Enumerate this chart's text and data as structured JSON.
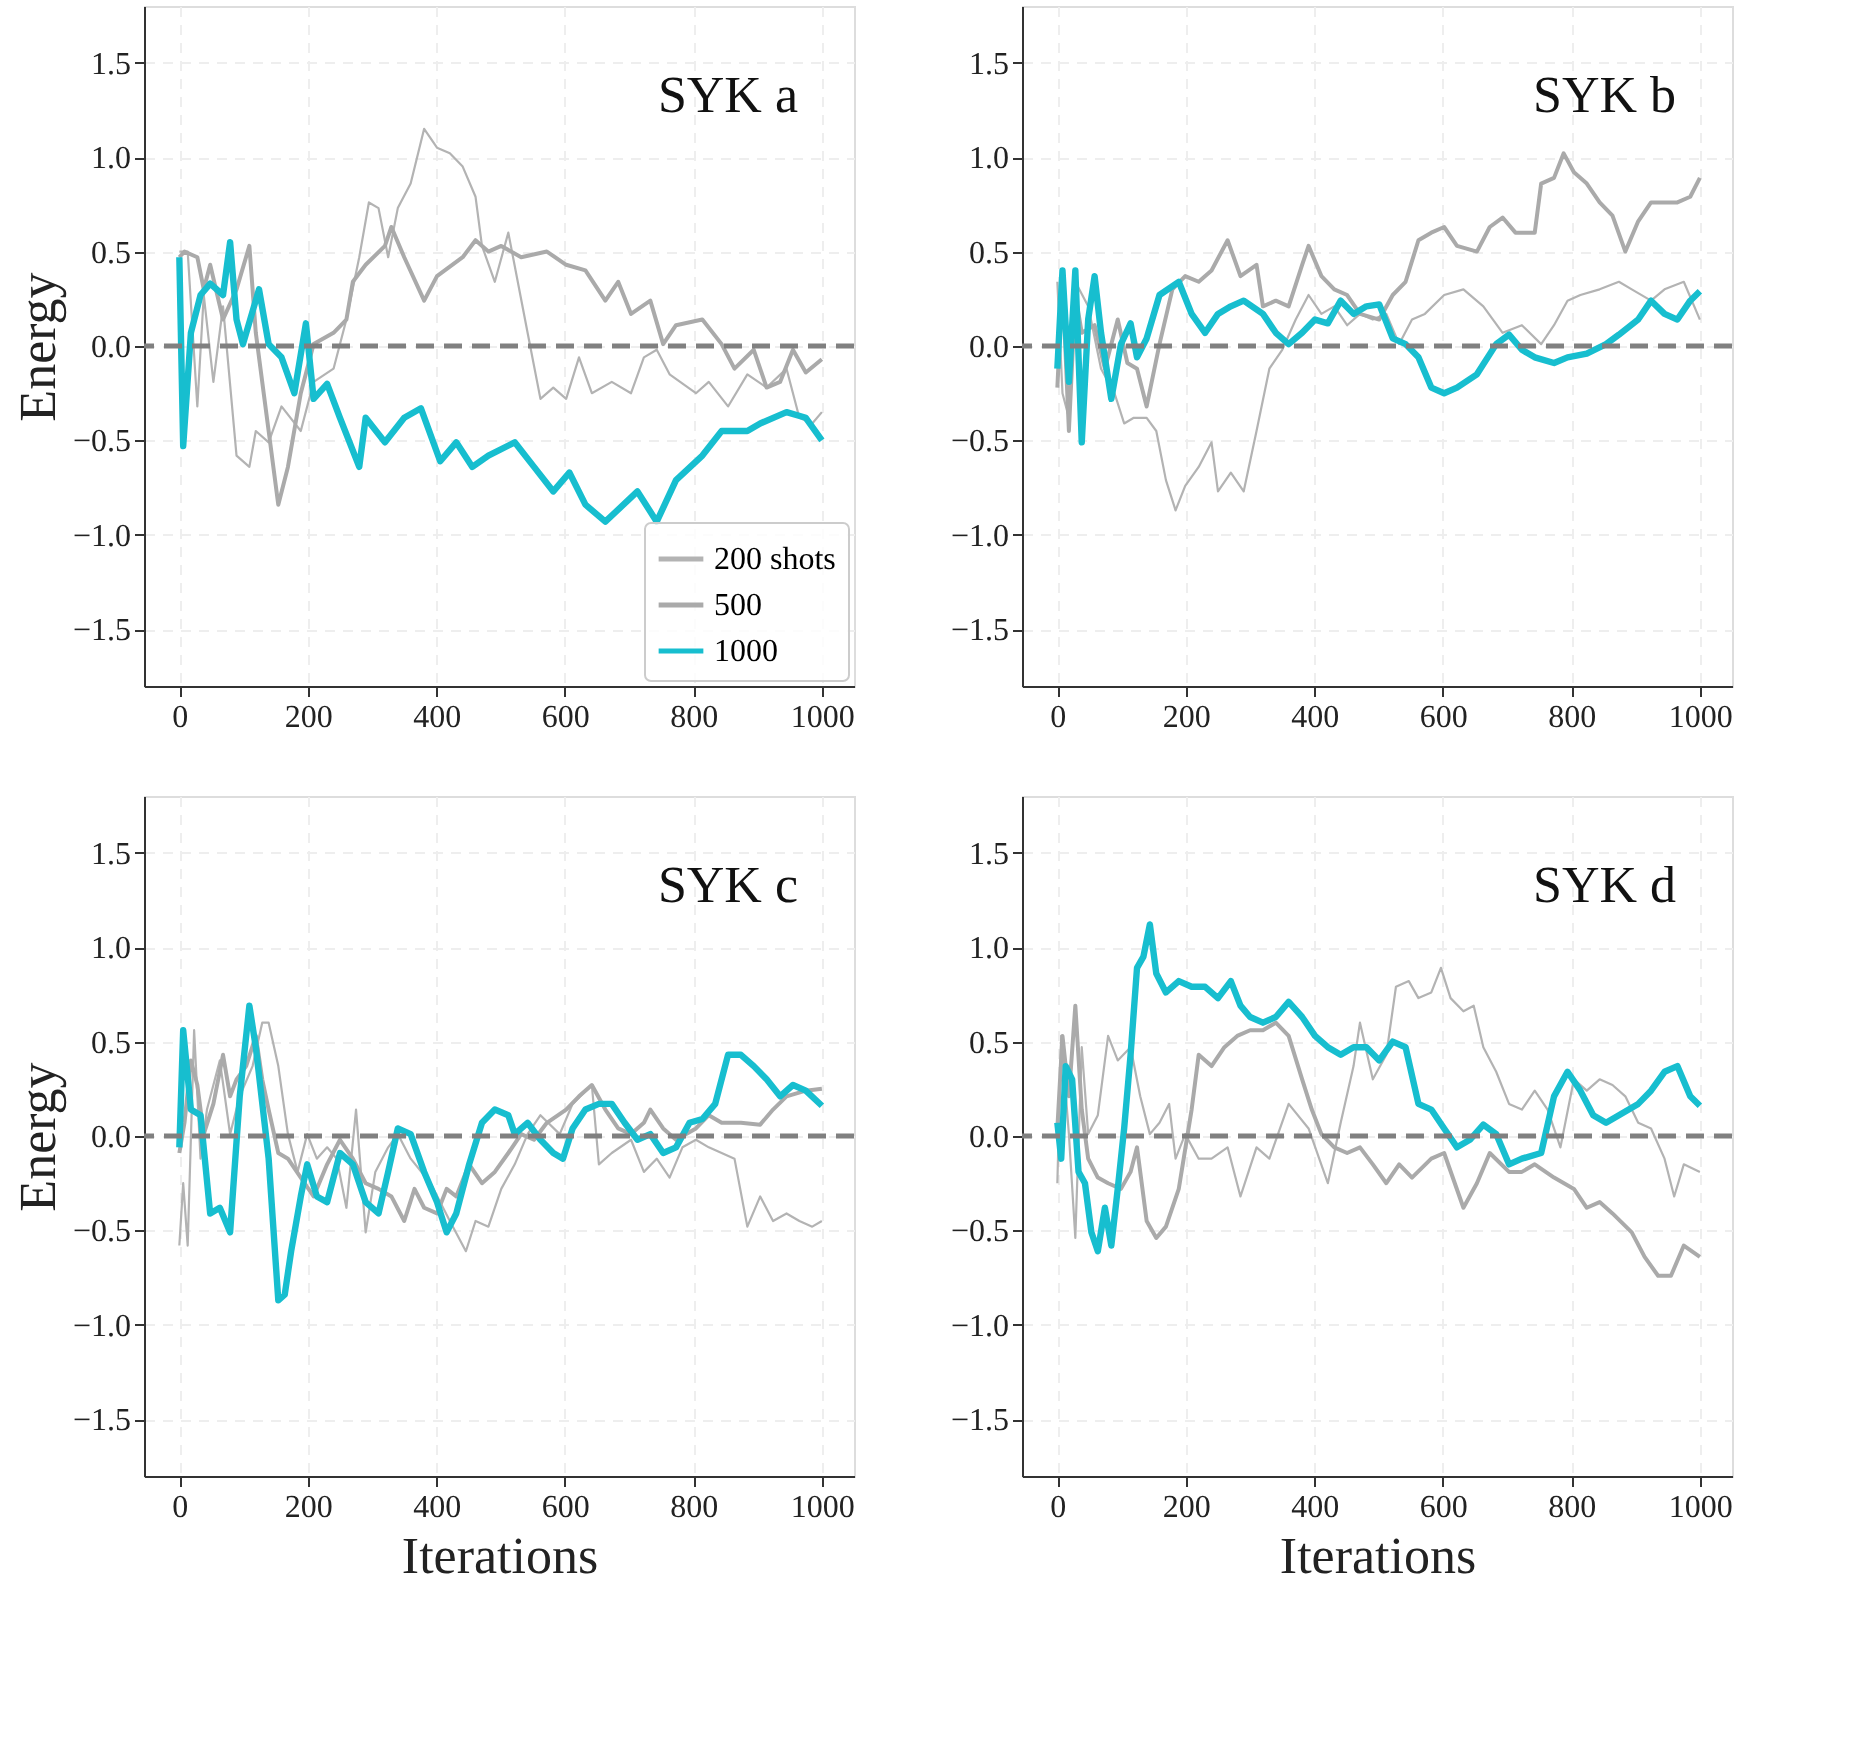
{
  "chart_data": [
    {
      "type": "line",
      "title": "SYK a",
      "ylabel": "Energy",
      "xlim": [
        -55,
        1050
      ],
      "ylim": [
        -1.8,
        1.8
      ],
      "xticks": [
        0,
        200,
        400,
        600,
        800,
        1000
      ],
      "yticks": [
        {
          "value": -1.5,
          "label": "−1.5"
        },
        {
          "value": -1,
          "label": "−1.0"
        },
        {
          "value": -0.5,
          "label": "−0.5"
        },
        {
          "value": 0,
          "label": "0.0"
        },
        {
          "value": 0.5,
          "label": "0.5"
        },
        {
          "value": 1,
          "label": "1.0"
        },
        {
          "value": 1.5,
          "label": "1.5"
        }
      ],
      "grid": true,
      "legend": "bottom right",
      "ref_lines": [
        {
          "axis": "y",
          "value": 0,
          "color": "#808080",
          "line_style": "dashed"
        }
      ],
      "series": [
        {
          "name": "200 shots",
          "color": "#b3b3b3",
          "x": [
            0,
            13,
            28,
            38,
            53,
            68,
            89,
            109,
            119,
            139,
            159,
            189,
            209,
            240,
            260,
            280,
            295,
            310,
            325,
            340,
            360,
            381,
            401,
            421,
            441,
            461,
            471,
            491,
            512,
            542,
            562,
            582,
            602,
            622,
            642,
            673,
            703,
            723,
            743,
            763,
            804,
            824,
            854,
            884,
            914,
            945,
            965,
            985,
            1000
          ],
          "values": [
            0.5,
            0.5,
            -0.32,
            0.27,
            -0.19,
            0.21,
            -0.58,
            -0.64,
            -0.45,
            -0.51,
            -0.32,
            -0.45,
            -0.19,
            -0.12,
            0.14,
            0.47,
            0.76,
            0.73,
            0.47,
            0.73,
            0.86,
            1.15,
            1.05,
            1.02,
            0.95,
            0.79,
            0.53,
            0.34,
            0.6,
            0.07,
            -0.28,
            -0.22,
            -0.28,
            -0.06,
            -0.25,
            -0.19,
            -0.25,
            -0.06,
            -0.02,
            -0.15,
            -0.25,
            -0.19,
            -0.32,
            -0.15,
            -0.22,
            -0.12,
            -0.38,
            -0.41,
            -0.35
          ]
        },
        {
          "name": "500",
          "color": "#aaaaaa",
          "x": [
            0,
            8,
            28,
            38,
            48,
            68,
            89,
            109,
            119,
            139,
            154,
            169,
            189,
            209,
            240,
            260,
            270,
            290,
            320,
            330,
            350,
            381,
            401,
            441,
            461,
            481,
            501,
            532,
            572,
            602,
            632,
            663,
            683,
            703,
            733,
            753,
            773,
            814,
            844,
            864,
            894,
            914,
            935,
            955,
            975,
            1000
          ],
          "values": [
            0.47,
            0.5,
            0.47,
            0.3,
            0.43,
            0.14,
            0.3,
            0.53,
            0.07,
            -0.45,
            -0.84,
            -0.64,
            -0.25,
            0.01,
            0.07,
            0.14,
            0.34,
            0.43,
            0.53,
            0.63,
            0.47,
            0.24,
            0.37,
            0.47,
            0.56,
            0.5,
            0.53,
            0.47,
            0.5,
            0.43,
            0.4,
            0.24,
            0.34,
            0.17,
            0.24,
            0.01,
            0.11,
            0.14,
            0.01,
            -0.12,
            -0.02,
            -0.22,
            -0.19,
            -0.02,
            -0.14,
            -0.07
          ]
        },
        {
          "name": "1000",
          "color": "#17becf",
          "x": [
            0,
            6,
            18,
            33,
            48,
            68,
            79,
            89,
            99,
            124,
            139,
            159,
            179,
            197,
            209,
            230,
            250,
            280,
            290,
            320,
            350,
            376,
            406,
            431,
            456,
            481,
            522,
            552,
            582,
            607,
            632,
            663,
            713,
            743,
            773,
            814,
            844,
            884,
            904,
            945,
            975,
            1000
          ],
          "values": [
            0.47,
            -0.53,
            0.07,
            0.27,
            0.33,
            0.27,
            0.55,
            0.14,
            0.01,
            0.3,
            0.01,
            -0.06,
            -0.25,
            0.12,
            -0.28,
            -0.2,
            -0.38,
            -0.64,
            -0.38,
            -0.51,
            -0.38,
            -0.33,
            -0.61,
            -0.51,
            -0.64,
            -0.58,
            -0.51,
            -0.64,
            -0.77,
            -0.67,
            -0.84,
            -0.93,
            -0.77,
            -0.93,
            -0.71,
            -0.58,
            -0.45,
            -0.45,
            -0.41,
            -0.35,
            -0.38,
            -0.5
          ]
        }
      ]
    },
    {
      "type": "line",
      "title": "SYK b",
      "xlim": [
        -55,
        1050
      ],
      "ylim": [
        -1.8,
        1.8
      ],
      "xticks": [
        0,
        200,
        400,
        600,
        800,
        1000
      ],
      "yticks": [
        {
          "value": -1.5,
          "label": "−1.5"
        },
        {
          "value": -1,
          "label": "−1.0"
        },
        {
          "value": -0.5,
          "label": "−0.5"
        },
        {
          "value": 0,
          "label": "0.0"
        },
        {
          "value": 0.5,
          "label": "0.5"
        },
        {
          "value": 1,
          "label": "1.0"
        },
        {
          "value": 1.5,
          "label": "1.5"
        }
      ],
      "grid": true,
      "ref_lines": [
        {
          "axis": "y",
          "value": 0,
          "color": "#808080",
          "line_style": "dashed"
        }
      ],
      "series": [
        {
          "color": "#b3b3b3",
          "x": [
            0,
            8,
            18,
            28,
            48,
            68,
            89,
            104,
            119,
            139,
            154,
            169,
            184,
            199,
            220,
            240,
            250,
            270,
            290,
            310,
            330,
            350,
            371,
            391,
            411,
            431,
            451,
            471,
            491,
            512,
            532,
            552,
            572,
            602,
            632,
            663,
            693,
            723,
            753,
            773,
            794,
            814,
            844,
            874,
            894,
            924,
            945,
            975,
            1000
          ],
          "values": [
            0.34,
            -0.25,
            -0.38,
            0.34,
            0.21,
            -0.12,
            -0.25,
            -0.41,
            -0.38,
            -0.38,
            -0.45,
            -0.71,
            -0.87,
            -0.74,
            -0.64,
            -0.51,
            -0.77,
            -0.67,
            -0.77,
            -0.45,
            -0.12,
            -0.02,
            0.14,
            0.27,
            0.17,
            0.21,
            0.11,
            0.17,
            0.14,
            0.17,
            0.01,
            0.14,
            0.17,
            0.27,
            0.3,
            0.21,
            0.07,
            0.11,
            0.01,
            0.11,
            0.24,
            0.27,
            0.3,
            0.34,
            0.3,
            0.24,
            0.3,
            0.34,
            0.14
          ]
        },
        {
          "color": "#aaaaaa",
          "x": [
            0,
            8,
            18,
            28,
            38,
            58,
            74,
            94,
            109,
            124,
            139,
            159,
            179,
            199,
            220,
            240,
            265,
            285,
            310,
            320,
            340,
            360,
            381,
            391,
            411,
            431,
            451,
            471,
            501,
            522,
            542,
            562,
            582,
            602,
            622,
            653,
            673,
            693,
            713,
            743,
            753,
            773,
            788,
            804,
            824,
            844,
            864,
            884,
            904,
            924,
            945,
            965,
            985,
            1000
          ],
          "values": [
            -0.22,
            0.34,
            -0.45,
            0.27,
            0.07,
            0.11,
            -0.12,
            0.14,
            -0.09,
            -0.12,
            -0.32,
            0.01,
            0.3,
            0.37,
            0.34,
            0.4,
            0.56,
            0.37,
            0.43,
            0.21,
            0.24,
            0.21,
            0.43,
            0.53,
            0.37,
            0.3,
            0.27,
            0.17,
            0.14,
            0.27,
            0.34,
            0.56,
            0.6,
            0.63,
            0.53,
            0.5,
            0.63,
            0.68,
            0.6,
            0.6,
            0.86,
            0.89,
            1.02,
            0.92,
            0.86,
            0.76,
            0.69,
            0.5,
            0.66,
            0.76,
            0.76,
            0.76,
            0.79,
            0.89
          ]
        },
        {
          "color": "#17becf",
          "x": [
            0,
            8,
            18,
            28,
            38,
            48,
            58,
            68,
            84,
            99,
            114,
            124,
            139,
            159,
            189,
            209,
            230,
            250,
            270,
            290,
            320,
            340,
            360,
            381,
            401,
            421,
            441,
            461,
            481,
            501,
            522,
            542,
            562,
            582,
            602,
            622,
            653,
            683,
            703,
            723,
            743,
            773,
            794,
            824,
            854,
            874,
            904,
            924,
            945,
            965,
            985,
            1000
          ],
          "values": [
            -0.12,
            0.4,
            -0.19,
            0.4,
            -0.51,
            0.14,
            0.37,
            0.07,
            -0.28,
            0.01,
            0.12,
            -0.06,
            0.04,
            0.27,
            0.34,
            0.17,
            0.07,
            0.17,
            0.21,
            0.24,
            0.17,
            0.07,
            0.01,
            0.07,
            0.14,
            0.12,
            0.24,
            0.17,
            0.21,
            0.22,
            0.04,
            0.01,
            -0.06,
            -0.22,
            -0.25,
            -0.22,
            -0.15,
            0.01,
            0.06,
            -0.02,
            -0.06,
            -0.09,
            -0.06,
            -0.04,
            0.01,
            0.06,
            0.14,
            0.24,
            0.17,
            0.14,
            0.24,
            0.29
          ]
        }
      ]
    },
    {
      "type": "line",
      "title": "SYK c",
      "ylabel": "Energy",
      "xlabel": "Iterations",
      "xlim": [
        -55,
        1050
      ],
      "ylim": [
        -1.8,
        1.8
      ],
      "xticks": [
        0,
        200,
        400,
        600,
        800,
        1000
      ],
      "yticks": [
        {
          "value": -1.5,
          "label": "−1.5"
        },
        {
          "value": -1,
          "label": "−1.0"
        },
        {
          "value": -0.5,
          "label": "−0.5"
        },
        {
          "value": 0,
          "label": "0.0"
        },
        {
          "value": 0.5,
          "label": "0.5"
        },
        {
          "value": 1,
          "label": "1.0"
        },
        {
          "value": 1.5,
          "label": "1.5"
        }
      ],
      "grid": true,
      "ref_lines": [
        {
          "axis": "y",
          "value": 0,
          "color": "#808080",
          "line_style": "dashed"
        }
      ],
      "series": [
        {
          "color": "#b3b3b3",
          "x": [
            0,
            6,
            13,
            23,
            33,
            43,
            63,
            79,
            94,
            114,
            129,
            139,
            154,
            169,
            184,
            199,
            214,
            230,
            245,
            260,
            275,
            290,
            305,
            325,
            340,
            360,
            391,
            421,
            446,
            461,
            481,
            501,
            522,
            542,
            562,
            592,
            612,
            642,
            653,
            673,
            703,
            723,
            743,
            763,
            783,
            804,
            824,
            844,
            864,
            884,
            904,
            924,
            945,
            965,
            985,
            1000
          ],
          "values": [
            -0.58,
            -0.25,
            -0.58,
            0.56,
            -0.12,
            0.14,
            0.4,
            0.01,
            0.21,
            0.37,
            0.6,
            0.6,
            0.37,
            0.01,
            -0.19,
            0.01,
            -0.12,
            -0.06,
            -0.12,
            -0.38,
            0.14,
            -0.51,
            -0.19,
            -0.06,
            0.01,
            -0.12,
            -0.25,
            -0.45,
            -0.61,
            -0.45,
            -0.48,
            -0.28,
            -0.15,
            0.01,
            0.11,
            0.01,
            0.17,
            0.27,
            -0.15,
            -0.09,
            -0.02,
            -0.19,
            -0.12,
            -0.22,
            -0.06,
            -0.02,
            -0.06,
            -0.09,
            -0.12,
            -0.48,
            -0.32,
            -0.45,
            -0.41,
            -0.45,
            -0.48,
            -0.45
          ]
        },
        {
          "color": "#aaaaaa",
          "x": [
            0,
            8,
            18,
            28,
            38,
            53,
            68,
            79,
            89,
            104,
            119,
            129,
            139,
            154,
            169,
            189,
            209,
            230,
            250,
            270,
            290,
            310,
            330,
            350,
            366,
            381,
            401,
            416,
            431,
            451,
            471,
            491,
            512,
            532,
            552,
            572,
            602,
            622,
            642,
            663,
            683,
            703,
            723,
            733,
            753,
            773,
            804,
            824,
            844,
            874,
            904,
            924,
            945,
            975,
            1000
          ],
          "values": [
            -0.09,
            0.07,
            0.4,
            0.27,
            0.01,
            0.17,
            0.43,
            0.21,
            0.3,
            0.37,
            0.53,
            0.3,
            0.14,
            -0.09,
            -0.12,
            -0.22,
            -0.32,
            -0.15,
            -0.02,
            -0.12,
            -0.25,
            -0.28,
            -0.32,
            -0.45,
            -0.28,
            -0.38,
            -0.41,
            -0.28,
            -0.32,
            -0.15,
            -0.25,
            -0.19,
            -0.09,
            0.01,
            -0.02,
            0.07,
            0.14,
            0.21,
            0.27,
            0.14,
            0.04,
            0.01,
            0.07,
            0.14,
            0.04,
            -0.02,
            0.04,
            0.11,
            0.07,
            0.07,
            0.06,
            0.14,
            0.21,
            0.24,
            0.25
          ]
        },
        {
          "color": "#17becf",
          "x": [
            0,
            6,
            18,
            33,
            48,
            63,
            79,
            94,
            109,
            119,
            139,
            154,
            164,
            174,
            189,
            199,
            214,
            230,
            250,
            270,
            290,
            310,
            325,
            340,
            360,
            381,
            401,
            416,
            431,
            451,
            471,
            491,
            512,
            522,
            542,
            562,
            582,
            597,
            612,
            632,
            653,
            673,
            693,
            713,
            733,
            753,
            773,
            794,
            814,
            834,
            854,
            874,
            894,
            914,
            935,
            955,
            975,
            1000
          ],
          "values": [
            -0.06,
            0.56,
            0.14,
            0.11,
            -0.41,
            -0.38,
            -0.51,
            0.21,
            0.69,
            0.47,
            -0.12,
            -0.87,
            -0.84,
            -0.61,
            -0.32,
            -0.15,
            -0.32,
            -0.35,
            -0.09,
            -0.15,
            -0.35,
            -0.41,
            -0.19,
            0.04,
            0.01,
            -0.19,
            -0.35,
            -0.51,
            -0.41,
            -0.15,
            0.07,
            0.14,
            0.11,
            0.01,
            0.07,
            -0.02,
            -0.09,
            -0.12,
            0.04,
            0.14,
            0.17,
            0.17,
            0.07,
            -0.02,
            0.01,
            -0.09,
            -0.06,
            0.07,
            0.09,
            0.17,
            0.43,
            0.43,
            0.37,
            0.3,
            0.21,
            0.27,
            0.24,
            0.16
          ]
        }
      ]
    },
    {
      "type": "line",
      "title": "SYK d",
      "xlabel": "Iterations",
      "xlim": [
        -55,
        1050
      ],
      "ylim": [
        -1.8,
        1.8
      ],
      "xticks": [
        0,
        200,
        400,
        600,
        800,
        1000
      ],
      "yticks": [
        {
          "value": -1.5,
          "label": "−1.5"
        },
        {
          "value": -1,
          "label": "−1.0"
        },
        {
          "value": -0.5,
          "label": "−0.5"
        },
        {
          "value": 0,
          "label": "0.0"
        },
        {
          "value": 0.5,
          "label": "0.5"
        },
        {
          "value": 1,
          "label": "1.0"
        },
        {
          "value": 1.5,
          "label": "1.5"
        }
      ],
      "grid": true,
      "ref_lines": [
        {
          "axis": "y",
          "value": 0,
          "color": "#808080",
          "line_style": "dashed"
        }
      ],
      "series": [
        {
          "color": "#b3b3b3",
          "x": [
            0,
            6,
            18,
            28,
            38,
            48,
            63,
            79,
            94,
            114,
            129,
            144,
            159,
            174,
            184,
            199,
            220,
            240,
            265,
            285,
            310,
            330,
            360,
            391,
            421,
            441,
            461,
            471,
            491,
            512,
            527,
            547,
            562,
            582,
            597,
            612,
            632,
            648,
            663,
            683,
            703,
            723,
            743,
            763,
            783,
            804,
            824,
            844,
            864,
            884,
            904,
            924,
            945,
            960,
            975,
            1000
          ],
          "values": [
            -0.25,
            0.53,
            0.01,
            -0.54,
            0.47,
            0.01,
            0.11,
            0.53,
            0.4,
            0.47,
            0.21,
            0.01,
            0.07,
            0.17,
            -0.12,
            0.01,
            -0.12,
            -0.12,
            -0.06,
            -0.32,
            -0.06,
            -0.12,
            0.17,
            0.04,
            -0.25,
            0.07,
            0.37,
            0.6,
            0.3,
            0.43,
            0.79,
            0.82,
            0.73,
            0.76,
            0.89,
            0.73,
            0.66,
            0.69,
            0.47,
            0.34,
            0.17,
            0.14,
            0.24,
            0.14,
            -0.06,
            0.3,
            0.24,
            0.3,
            0.27,
            0.21,
            0.07,
            0.04,
            -0.12,
            -0.32,
            -0.15,
            -0.19
          ]
        },
        {
          "color": "#aaaaaa",
          "x": [
            0,
            8,
            18,
            28,
            38,
            48,
            63,
            79,
            99,
            114,
            124,
            139,
            154,
            169,
            189,
            209,
            220,
            240,
            260,
            280,
            300,
            320,
            340,
            360,
            381,
            396,
            411,
            431,
            451,
            471,
            491,
            512,
            532,
            552,
            582,
            602,
            632,
            653,
            673,
            703,
            723,
            743,
            773,
            804,
            824,
            844,
            864,
            894,
            914,
            935,
            955,
            975,
            1000
          ],
          "values": [
            0.04,
            0.53,
            0.21,
            0.69,
            0.14,
            -0.12,
            -0.22,
            -0.25,
            -0.28,
            -0.19,
            -0.06,
            -0.45,
            -0.54,
            -0.48,
            -0.28,
            0.14,
            0.43,
            0.37,
            0.47,
            0.53,
            0.56,
            0.56,
            0.6,
            0.53,
            0.3,
            0.14,
            0.01,
            -0.06,
            -0.09,
            -0.06,
            -0.15,
            -0.25,
            -0.15,
            -0.22,
            -0.12,
            -0.09,
            -0.38,
            -0.25,
            -0.09,
            -0.19,
            -0.19,
            -0.15,
            -0.22,
            -0.28,
            -0.38,
            -0.35,
            -0.41,
            -0.51,
            -0.64,
            -0.74,
            -0.74,
            -0.58,
            -0.64
          ]
        },
        {
          "color": "#17becf",
          "x": [
            0,
            6,
            13,
            23,
            33,
            43,
            53,
            63,
            74,
            84,
            94,
            104,
            114,
            124,
            134,
            144,
            154,
            169,
            189,
            209,
            230,
            250,
            270,
            285,
            300,
            320,
            340,
            360,
            381,
            401,
            421,
            441,
            461,
            481,
            501,
            522,
            542,
            562,
            582,
            602,
            622,
            642,
            663,
            683,
            703,
            723,
            753,
            773,
            794,
            814,
            834,
            854,
            874,
            904,
            924,
            945,
            965,
            985,
            1000
          ],
          "values": [
            0.07,
            -0.12,
            0.37,
            0.3,
            -0.19,
            -0.25,
            -0.51,
            -0.61,
            -0.38,
            -0.58,
            -0.28,
            0.04,
            0.43,
            0.89,
            0.95,
            1.12,
            0.86,
            0.76,
            0.82,
            0.79,
            0.79,
            0.73,
            0.82,
            0.69,
            0.63,
            0.6,
            0.63,
            0.71,
            0.63,
            0.53,
            0.47,
            0.43,
            0.47,
            0.47,
            0.4,
            0.5,
            0.47,
            0.17,
            0.14,
            0.04,
            -0.06,
            -0.02,
            0.06,
            0.01,
            -0.15,
            -0.12,
            -0.09,
            0.21,
            0.34,
            0.24,
            0.11,
            0.07,
            0.11,
            0.17,
            0.24,
            0.34,
            0.37,
            0.21,
            0.16
          ]
        }
      ]
    }
  ]
}
